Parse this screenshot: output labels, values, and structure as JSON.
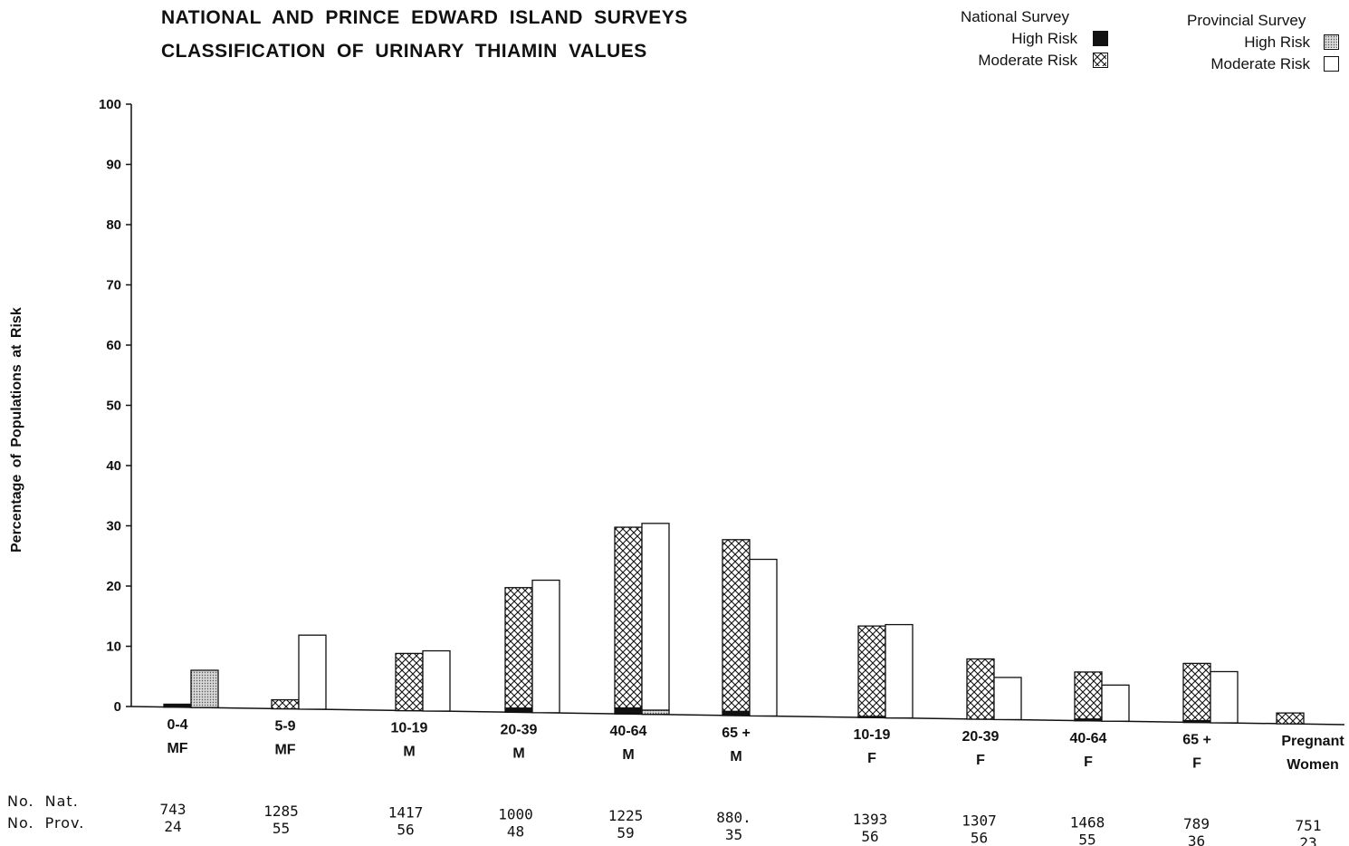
{
  "title_line1": "NATIONAL AND PRINCE EDWARD ISLAND SURVEYS",
  "title_line2": "CLASSIFICATION OF URINARY THIAMIN VALUES",
  "legend": {
    "national_heading": "National Survey",
    "provincial_heading": "Provincial Survey",
    "high_risk": "High Risk",
    "moderate_risk": "Moderate Risk"
  },
  "count_labels": {
    "national": "No. Nat.",
    "provincial": "No. Prov."
  },
  "colors": {
    "ink": "#111111",
    "dot_fill": "#c8c8c8",
    "background": "#ffffff"
  },
  "chart_data": {
    "type": "bar",
    "stacked": true,
    "ylabel": "Percentage of Populations at Risk",
    "ylim": [
      0,
      100
    ],
    "yticks": [
      0,
      10,
      20,
      30,
      40,
      50,
      60,
      70,
      80,
      90,
      100
    ],
    "grid": false,
    "legend_position": "top-right",
    "categories": [
      {
        "age": "0-4",
        "sex": "MF",
        "n_nat": "743",
        "n_prov": "24"
      },
      {
        "age": "5-9",
        "sex": "MF",
        "n_nat": "1285",
        "n_prov": "55"
      },
      {
        "age": "10-19",
        "sex": "M",
        "n_nat": "1417",
        "n_prov": "56"
      },
      {
        "age": "20-39",
        "sex": "M",
        "n_nat": "1000",
        "n_prov": "48"
      },
      {
        "age": "40-64",
        "sex": "M",
        "n_nat": "1225",
        "n_prov": "59"
      },
      {
        "age": "65 +",
        "sex": "M",
        "n_nat": "880.",
        "n_prov": "35"
      },
      {
        "age": "10-19",
        "sex": "F",
        "n_nat": "1393",
        "n_prov": "56"
      },
      {
        "age": "20-39",
        "sex": "F",
        "n_nat": "1307",
        "n_prov": "56"
      },
      {
        "age": "40-64",
        "sex": "F",
        "n_nat": "1468",
        "n_prov": "55"
      },
      {
        "age": "65 +",
        "sex": "F",
        "n_nat": "789",
        "n_prov": "36"
      },
      {
        "age": "Pregnant",
        "sex": "Women",
        "n_nat": "751",
        "n_prov": "23"
      }
    ],
    "series": [
      {
        "name": "National Survey High Risk",
        "group": "national",
        "pattern": "solid",
        "values": [
          0.5,
          0,
          0,
          0.7,
          1.0,
          0.7,
          0.2,
          0,
          0.3,
          0.3,
          0
        ]
      },
      {
        "name": "National Survey Moderate Risk",
        "group": "national",
        "pattern": "crosshatch",
        "values": [
          0,
          1.5,
          9.5,
          20.0,
          30.0,
          28.5,
          15.0,
          10.0,
          7.8,
          9.5,
          1.8
        ]
      },
      {
        "name": "Provincial Survey High Risk",
        "group": "provincial",
        "pattern": "dotted",
        "values": [
          6.2,
          0,
          0,
          0,
          0.7,
          0,
          0,
          0,
          0,
          0,
          0
        ]
      },
      {
        "name": "Provincial Survey Moderate Risk",
        "group": "provincial",
        "pattern": "open",
        "values": [
          0,
          12.3,
          10.0,
          22.0,
          31.0,
          26.0,
          15.5,
          7.0,
          6.0,
          8.5,
          0
        ]
      }
    ]
  }
}
